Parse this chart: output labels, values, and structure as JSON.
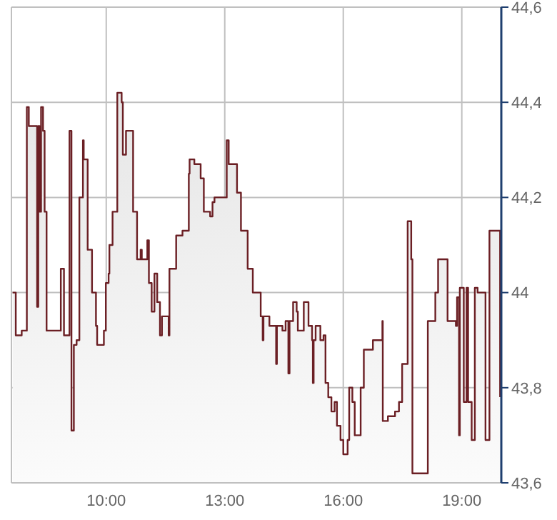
{
  "chart_data": {
    "type": "area",
    "xlim": [
      7.6,
      20
    ],
    "xticks": [
      {
        "value": 10,
        "label": "10:00"
      },
      {
        "value": 13,
        "label": "13:00"
      },
      {
        "value": 16,
        "label": "16:00"
      },
      {
        "value": 19,
        "label": "19:00"
      }
    ],
    "ylim": [
      43.6,
      44.6
    ],
    "yticks": [
      {
        "value": 43.6,
        "label": "43,6"
      },
      {
        "value": 43.8,
        "label": "43,8"
      },
      {
        "value": 44,
        "label": "44"
      },
      {
        "value": 44.2,
        "label": "44,2"
      },
      {
        "value": 44.4,
        "label": "44,4"
      },
      {
        "value": 44.6,
        "label": "44,6"
      }
    ],
    "grid": true,
    "legend": false,
    "series": [
      {
        "color": "#6b1f24",
        "x": [
          7.63,
          7.71,
          7.71,
          7.86,
          7.86,
          7.99,
          7.99,
          8.04,
          8.04,
          8.25,
          8.25,
          8.28,
          8.28,
          8.31,
          8.31,
          8.35,
          8.35,
          8.4,
          8.4,
          8.44,
          8.44,
          8.49,
          8.49,
          8.85,
          8.85,
          8.93,
          8.93,
          9.07,
          9.07,
          9.12,
          9.12,
          9.18,
          9.18,
          9.25,
          9.25,
          9.32,
          9.32,
          9.41,
          9.41,
          9.43,
          9.43,
          9.53,
          9.53,
          9.64,
          9.64,
          9.74,
          9.74,
          9.77,
          9.77,
          9.94,
          9.94,
          9.99,
          9.99,
          10.06,
          10.06,
          10.08,
          10.08,
          10.16,
          10.16,
          10.28,
          10.28,
          10.39,
          10.39,
          10.42,
          10.42,
          10.5,
          10.5,
          10.68,
          10.68,
          10.78,
          10.78,
          10.87,
          10.87,
          10.9,
          10.9,
          11.04,
          11.04,
          11.08,
          11.08,
          11.15,
          11.15,
          11.22,
          11.22,
          11.29,
          11.29,
          11.36,
          11.36,
          11.41,
          11.41,
          11.58,
          11.58,
          11.6,
          11.6,
          11.77,
          11.77,
          11.93,
          11.93,
          12.09,
          12.09,
          12.11,
          12.11,
          12.23,
          12.23,
          12.39,
          12.39,
          12.47,
          12.47,
          12.63,
          12.63,
          12.69,
          12.69,
          12.74,
          12.74,
          13.05,
          13.05,
          13.1,
          13.1,
          13.31,
          13.31,
          13.41,
          13.41,
          13.58,
          13.58,
          13.71,
          13.71,
          13.91,
          13.91,
          13.96,
          13.96,
          13.98,
          13.98,
          14.13,
          14.13,
          14.3,
          14.3,
          14.32,
          14.32,
          14.46,
          14.46,
          14.54,
          14.54,
          14.61,
          14.61,
          14.64,
          14.64,
          14.73,
          14.73,
          14.82,
          14.82,
          14.85,
          14.85,
          15,
          15,
          15.12,
          15.12,
          15.21,
          15.21,
          15.23,
          15.23,
          15.25,
          15.25,
          15.3,
          15.3,
          15.42,
          15.42,
          15.5,
          15.5,
          15.55,
          15.55,
          15.62,
          15.62,
          15.7,
          15.7,
          15.78,
          15.78,
          15.84,
          15.84,
          15.93,
          15.93,
          16,
          16,
          16.11,
          16.11,
          16.15,
          16.15,
          16.23,
          16.23,
          16.29,
          16.29,
          16.44,
          16.44,
          16.52,
          16.52,
          16.75,
          16.75,
          16.99,
          16.99,
          17,
          17,
          17.13,
          17.13,
          17.31,
          17.31,
          17.41,
          17.41,
          17.49,
          17.49,
          17.63,
          17.63,
          17.72,
          17.72,
          17.75,
          17.75,
          18.14,
          18.14,
          18.33,
          18.33,
          18.4,
          18.4,
          18.64,
          18.64,
          18.85,
          18.85,
          18.88,
          18.88,
          18.93,
          18.93,
          18.95,
          18.95,
          19.05,
          19.05,
          19.12,
          19.12,
          19.16,
          19.16,
          19.25,
          19.25,
          19.33,
          19.33,
          19.4,
          19.4,
          19.6,
          19.6,
          19.7,
          19.7,
          19.97,
          19.97
        ],
        "values": [
          44,
          44,
          43.91,
          43.91,
          43.92,
          43.92,
          44.39,
          44.39,
          44.35,
          44.35,
          43.97,
          43.97,
          44.35,
          44.35,
          44.17,
          44.17,
          44.39,
          44.39,
          44.34,
          44.34,
          44.17,
          44.17,
          43.92,
          43.92,
          44.05,
          44.05,
          43.91,
          43.91,
          44.34,
          44.34,
          43.71,
          43.71,
          43.89,
          43.89,
          43.9,
          43.9,
          44.2,
          44.2,
          44.32,
          44.32,
          44.28,
          44.28,
          44.09,
          44.09,
          44,
          44,
          43.93,
          43.93,
          43.89,
          43.89,
          43.92,
          43.92,
          44.02,
          44.02,
          44.04,
          44.04,
          44.1,
          44.1,
          44.17,
          44.17,
          44.42,
          44.42,
          44.4,
          44.4,
          44.29,
          44.29,
          44.34,
          44.34,
          44.17,
          44.17,
          44.07,
          44.07,
          44.09,
          44.09,
          44.07,
          44.07,
          44.11,
          44.11,
          44.02,
          44.02,
          43.96,
          43.96,
          44.04,
          44.04,
          43.98,
          43.98,
          43.91,
          43.91,
          43.95,
          43.95,
          43.91,
          43.91,
          44.05,
          44.05,
          44.12,
          44.12,
          44.13,
          44.13,
          44.25,
          44.25,
          44.28,
          44.28,
          44.27,
          44.27,
          44.24,
          44.24,
          44.17,
          44.17,
          44.16,
          44.16,
          44.19,
          44.19,
          44.2,
          44.2,
          44.32,
          44.32,
          44.27,
          44.27,
          44.21,
          44.21,
          44.13,
          44.13,
          44.05,
          44.05,
          44,
          44,
          43.95,
          43.95,
          43.9,
          43.9,
          43.95,
          43.95,
          43.93,
          43.93,
          43.85,
          43.85,
          43.93,
          43.93,
          43.92,
          43.92,
          43.94,
          43.94,
          43.83,
          43.83,
          43.94,
          43.94,
          43.98,
          43.98,
          43.96,
          43.96,
          43.92,
          43.92,
          43.98,
          43.98,
          43.93,
          43.93,
          43.9,
          43.9,
          43.81,
          43.81,
          43.9,
          43.9,
          43.93,
          43.93,
          43.9,
          43.9,
          43.91,
          43.91,
          43.81,
          43.81,
          43.78,
          43.78,
          43.75,
          43.75,
          43.77,
          43.77,
          43.72,
          43.72,
          43.69,
          43.69,
          43.66,
          43.66,
          43.69,
          43.69,
          43.8,
          43.8,
          43.77,
          43.77,
          43.7,
          43.7,
          43.8,
          43.8,
          43.88,
          43.88,
          43.9,
          43.9,
          43.94,
          43.94,
          43.73,
          43.73,
          43.74,
          43.74,
          43.75,
          43.75,
          43.77,
          43.77,
          43.85,
          43.85,
          44.15,
          44.15,
          44.07,
          44.07,
          43.62,
          43.62,
          43.94,
          43.94,
          44,
          44,
          44.07,
          44.07,
          43.94,
          43.94,
          43.93,
          43.93,
          43.99,
          43.99,
          43.7,
          43.7,
          44.01,
          44.01,
          43.77,
          43.77,
          44.01,
          44.01,
          43.77,
          43.77,
          43.69,
          43.69,
          44.01,
          44.01,
          44,
          44,
          43.69,
          43.69,
          44.13,
          44.13,
          43.78
        ]
      }
    ]
  }
}
